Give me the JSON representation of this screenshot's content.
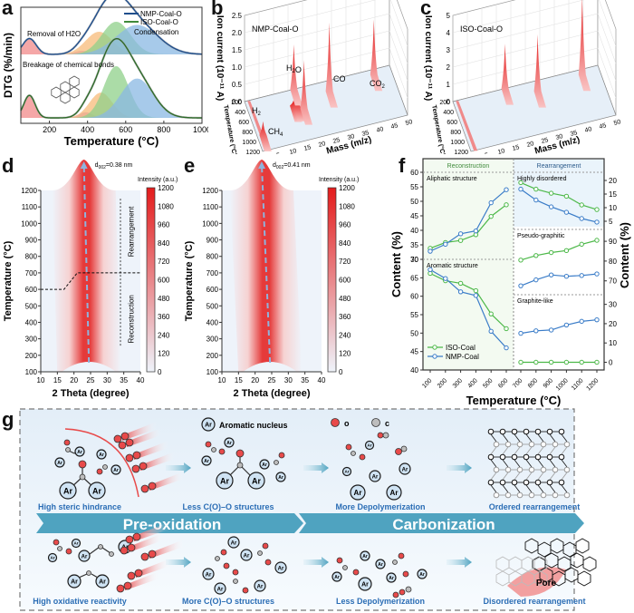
{
  "panels": {
    "a": {
      "letter": "a"
    },
    "b": {
      "letter": "b"
    },
    "c": {
      "letter": "c"
    },
    "d": {
      "letter": "d"
    },
    "e": {
      "letter": "e"
    },
    "f": {
      "letter": "f"
    },
    "g": {
      "letter": "g"
    }
  },
  "chart_data": [
    {
      "id": "a",
      "type": "area",
      "title": "",
      "xlabel": "Temperature (°C)",
      "ylabel": "DTG (%/min)",
      "xlim": [
        50,
        1000
      ],
      "xticks": [
        200,
        400,
        600,
        800,
        1000
      ],
      "legend": {
        "placement": "top-right",
        "entries": [
          {
            "name": "NMP-Coal-O",
            "color": "#1f4e8c"
          },
          {
            "name": "ISO-Coal-O",
            "color": "#3f8a3a"
          }
        ]
      },
      "annotations": [
        "Removal of H2O",
        "Condensation",
        "Breakage of chemical bonds"
      ],
      "series": [
        {
          "name": "NMP-Coal-O",
          "offset": "top",
          "peaks": [
            {
              "center": 95,
              "width": 35,
              "height": 0.35,
              "color": "#f28a8a"
            },
            {
              "center": 370,
              "width": 40,
              "height": 0.08,
              "color": "#c77ad6"
            },
            {
              "center": 460,
              "width": 70,
              "height": 0.5,
              "color": "#f7bb7a"
            },
            {
              "center": 550,
              "width": 75,
              "height": 0.72,
              "color": "#8fd08a"
            },
            {
              "center": 660,
              "width": 110,
              "height": 0.65,
              "color": "#8ab8e3"
            }
          ],
          "envelope_color": "#1f4e8c"
        },
        {
          "name": "ISO-Coal-O",
          "offset": "bottom",
          "peaks": [
            {
              "center": 95,
              "width": 30,
              "height": 0.4,
              "color": "#f28a8a"
            },
            {
              "center": 390,
              "width": 35,
              "height": 0.1,
              "color": "#c77ad6"
            },
            {
              "center": 470,
              "width": 60,
              "height": 0.45,
              "color": "#f7bb7a"
            },
            {
              "center": 550,
              "width": 65,
              "height": 0.92,
              "color": "#8fd08a"
            },
            {
              "center": 660,
              "width": 85,
              "height": 0.7,
              "color": "#8ab8e3"
            }
          ],
          "envelope_color": "#2e6b2a"
        }
      ]
    },
    {
      "id": "b",
      "type": "3d-ridge",
      "title": "NMP-Coal-O",
      "ylabel": "Ion current (10⁻¹¹ A)",
      "zlabel": "Temperature (°C)",
      "xlabel": "Mass (m/z)",
      "yticks": [
        "0.0",
        "0.5",
        "1.0",
        "1.5",
        "2.0",
        "2.5"
      ],
      "ylim": [
        0,
        2.5
      ],
      "xticks": [
        "5",
        "10",
        "15",
        "20",
        "25",
        "30",
        "35",
        "40",
        "45",
        "50"
      ],
      "zticks": [
        "200",
        "400",
        "600",
        "800",
        "1000",
        "1200"
      ],
      "annotations": [
        "H2O",
        "CO",
        "CO2",
        "H2",
        "CH4"
      ],
      "peaks": [
        {
          "mz": 2,
          "temp": 900,
          "height": 0.4,
          "label": "H2"
        },
        {
          "mz": 15,
          "temp": 500,
          "height": 0.15,
          "label": "CH4"
        },
        {
          "mz": 16,
          "temp": 500,
          "height": 0.15,
          "label": "CH4"
        },
        {
          "mz": 17,
          "temp": 200,
          "height": 1.3,
          "label": "H2O"
        },
        {
          "mz": 18,
          "temp": 600,
          "height": 1.4,
          "label": "H2O"
        },
        {
          "mz": 28,
          "temp": 400,
          "height": 2.0,
          "label": "CO"
        },
        {
          "mz": 44,
          "temp": 300,
          "height": 1.6,
          "label": "CO2"
        }
      ]
    },
    {
      "id": "c",
      "type": "3d-ridge",
      "title": "ISO-Coal-O",
      "ylabel": "Ion current (10⁻¹¹ A)",
      "zlabel": "Temperature (°C)",
      "xlabel": "Mass (m/z)",
      "yticks": [
        "0",
        "1",
        "2",
        "3",
        "4",
        "5"
      ],
      "ylim": [
        0,
        5
      ],
      "xticks": [
        "5",
        "10",
        "15",
        "20",
        "25",
        "30",
        "35",
        "40",
        "45",
        "50"
      ],
      "zticks": [
        "200",
        "400",
        "600",
        "800",
        "1000",
        "1200"
      ],
      "peaks": [
        {
          "mz": 18,
          "temp": 200,
          "height": 2.6,
          "label": "H2O"
        },
        {
          "mz": 28,
          "temp": 400,
          "height": 3.3,
          "label": "CO"
        },
        {
          "mz": 44,
          "temp": 300,
          "height": 4.6,
          "label": "CO2"
        }
      ]
    },
    {
      "id": "d",
      "type": "heatmap",
      "annotation": "d002=0.38 nm",
      "xlabel": "2 Theta (degree)",
      "ylabel": "Temperature (°C)",
      "xlim": [
        10,
        40
      ],
      "ylim": [
        100,
        1200
      ],
      "xticks": [
        10,
        15,
        20,
        25,
        30,
        35,
        40
      ],
      "yticks": [
        100,
        200,
        300,
        400,
        500,
        600,
        700,
        800,
        900,
        1000,
        1100,
        1200
      ],
      "colorbar": {
        "label": "Intensity (a.u.)",
        "ticks": [
          0,
          120,
          240,
          360,
          480,
          600,
          720,
          840,
          960,
          1080,
          1200
        ],
        "low": "#eef3fa",
        "high": "#e41b1b"
      },
      "peak_path": [
        {
          "temp": 200,
          "theta": 24.5
        },
        {
          "temp": 1200,
          "theta": 23.0
        }
      ],
      "regions": [
        "Rearrangement",
        "Reconstruction"
      ],
      "boundary_temp": 700
    },
    {
      "id": "e",
      "type": "heatmap",
      "annotation": "d002=0.41 nm",
      "xlabel": "2 Theta (degree)",
      "ylabel": "Temperature (°C)",
      "xlim": [
        10,
        40
      ],
      "ylim": [
        100,
        1200
      ],
      "xticks": [
        10,
        15,
        20,
        25,
        30,
        35,
        40
      ],
      "yticks": [
        100,
        200,
        300,
        400,
        500,
        600,
        700,
        800,
        900,
        1000,
        1100,
        1200
      ],
      "colorbar": {
        "label": "Intensity (a.u.)",
        "ticks": [
          0,
          120,
          240,
          360,
          480,
          600,
          720,
          840,
          960,
          1080,
          1200
        ],
        "low": "#eef3fa",
        "high": "#e41b1b"
      },
      "peak_path": [
        {
          "temp": 200,
          "theta": 24.5
        },
        {
          "temp": 1200,
          "theta": 22.0
        }
      ]
    },
    {
      "id": "f",
      "type": "line",
      "xlabel": "Temperature (°C)",
      "ylabel_left": "Content (%)",
      "ylabel_right": "Content (%)",
      "sections": [
        "Reconstruction",
        "Rearrangement"
      ],
      "legend": {
        "placement": "bottom-left",
        "entries": [
          {
            "name": "ISO-Coal",
            "color": "#4cb848"
          },
          {
            "name": "NMP-Coal",
            "color": "#3a7cc8"
          }
        ]
      },
      "subplots": [
        {
          "title": "Aliphatic structure",
          "x": [
            100,
            200,
            300,
            400,
            500,
            600
          ],
          "ylim": [
            30,
            60
          ],
          "yticks": [
            30,
            35,
            40,
            45,
            50,
            55,
            60
          ],
          "series": [
            {
              "name": "ISO-Coal",
              "values": [
                33.8,
                35.8,
                36.5,
                38.5,
                44.8,
                48.8
              ]
            },
            {
              "name": "NMP-Coal",
              "values": [
                32.8,
                35.2,
                38.8,
                39.8,
                49.5,
                54.0
              ]
            }
          ]
        },
        {
          "title": "Aromatic structure",
          "x": [
            100,
            200,
            300,
            400,
            500,
            600
          ],
          "ylim": [
            40,
            70
          ],
          "yticks": [
            40,
            45,
            50,
            55,
            60,
            65,
            70
          ],
          "series": [
            {
              "name": "ISO-Coal",
              "values": [
                66.2,
                64.2,
                63.5,
                61.5,
                55.2,
                51.2
              ]
            },
            {
              "name": "NMP-Coal",
              "values": [
                67.2,
                64.8,
                61.2,
                60.2,
                50.5,
                46.0
              ]
            }
          ]
        },
        {
          "title": "Highly disordered",
          "x": [
            700,
            800,
            900,
            1000,
            1100,
            1200
          ],
          "ylim": [
            2,
            23
          ],
          "yticks": [
            5,
            10,
            15,
            20
          ],
          "series": [
            {
              "name": "ISO-Coal",
              "values": [
                19.2,
                16.8,
                15.3,
                14.2,
                11.0,
                9.3
              ]
            },
            {
              "name": "NMP-Coal",
              "values": [
                16.8,
                12.8,
                10.3,
                8.3,
                6.0,
                4.7
              ]
            }
          ]
        },
        {
          "title": "Pseudo-graphitic",
          "x": [
            700,
            800,
            900,
            1000,
            1100,
            1200
          ],
          "ylim": [
            63,
            96
          ],
          "yticks": [
            70,
            80,
            90
          ],
          "series": [
            {
              "name": "ISO-Coal",
              "values": [
                80.5,
                82.8,
                84.3,
                85.3,
                88.5,
                90.5
              ]
            },
            {
              "name": "NMP-Coal",
              "values": [
                67.5,
                70.5,
                73.0,
                72.3,
                72.7,
                73.5
              ]
            }
          ]
        },
        {
          "title": "Graphite-like",
          "x": [
            700,
            800,
            900,
            1000,
            1100,
            1200
          ],
          "ylim": [
            -4,
            35
          ],
          "yticks": [
            0,
            10,
            20,
            30
          ],
          "series": [
            {
              "name": "ISO-Coal",
              "values": [
                0,
                0,
                0,
                0,
                0,
                0
              ]
            },
            {
              "name": "NMP-Coal",
              "values": [
                15.0,
                16.3,
                16.7,
                19.3,
                21.2,
                22.0
              ]
            }
          ]
        }
      ],
      "xticks": [
        100,
        200,
        300,
        400,
        500,
        600,
        700,
        800,
        900,
        1000,
        1100,
        1200
      ]
    }
  ],
  "scheme": {
    "legend": {
      "ar": "Ar",
      "aromatic_label": "Aromatic nucleus",
      "o_label": "O",
      "c_label": "C"
    },
    "top_row": [
      "High steric hindrance",
      "Less C(O)–O structures",
      "More Depolymerization",
      "Ordered rearrangement"
    ],
    "bottom_row": [
      "High oxidative reactivity",
      "More C(O)–O structures",
      "Less Depolymerization",
      "Disordered rearrangement"
    ],
    "banners": [
      "Pre-oxidation",
      "Carbonization"
    ],
    "pore_label": "Pore",
    "colors": {
      "banner": "#4fa3c0",
      "label_blue": "#2a6db5",
      "oxygen": "#e84a4a",
      "carbon": "#bdbdbd",
      "ar_fill": "#cfe3f3",
      "bg": "#eaf3fb"
    }
  }
}
